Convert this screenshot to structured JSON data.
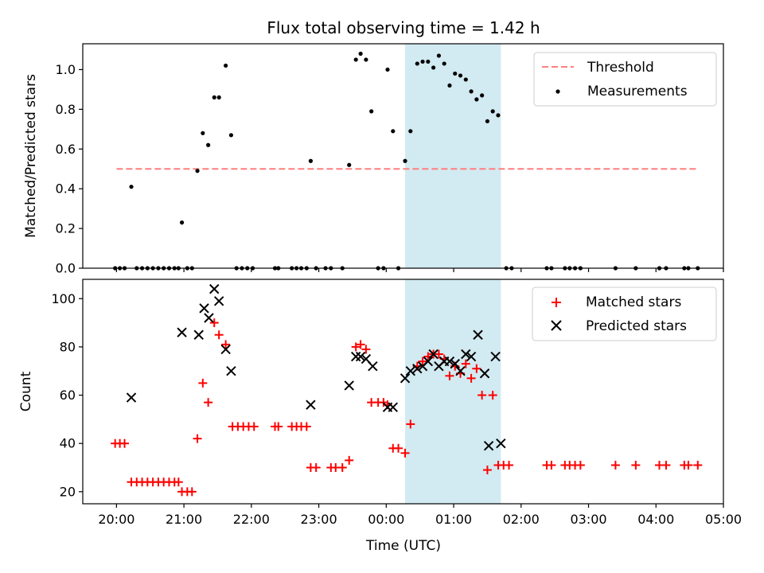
{
  "chart_data": {
    "title": "Flux total observing time = 1.42 h",
    "xlabel": "Time (UTC)",
    "x_unit": "hours UTC (values past 24 mean next day)",
    "xlim": [
      19.5,
      29.0
    ],
    "x_ticks": [
      {
        "value": 20,
        "label": "20:00"
      },
      {
        "value": 21,
        "label": "21:00"
      },
      {
        "value": 22,
        "label": "22:00"
      },
      {
        "value": 23,
        "label": "23:00"
      },
      {
        "value": 24,
        "label": "00:00"
      },
      {
        "value": 25,
        "label": "01:00"
      },
      {
        "value": 26,
        "label": "02:00"
      },
      {
        "value": 27,
        "label": "03:00"
      },
      {
        "value": 28,
        "label": "04:00"
      },
      {
        "value": 29,
        "label": "05:00"
      }
    ],
    "highlight_span": {
      "x0": 24.28,
      "x1": 25.7,
      "color": "#add8e6"
    },
    "panels": [
      {
        "type": "scatter",
        "ylabel": "Matched/Predicted stars",
        "ylim": [
          0,
          1.13
        ],
        "y_ticks": [
          "0.0",
          "0.2",
          "0.4",
          "0.6",
          "0.8",
          "1.0"
        ],
        "y_tick_values": [
          0,
          0.2,
          0.4,
          0.6,
          0.8,
          1.0
        ],
        "legend_position": "upper right",
        "threshold": {
          "name": "Threshold",
          "y": 0.5,
          "x0": 20.0,
          "x1": 28.63,
          "color": "#ff7f7f"
        },
        "series": [
          {
            "name": "Measurements",
            "color": "#000000",
            "marker": "dot",
            "points": [
              [
                19.98,
                0
              ],
              [
                20.05,
                0
              ],
              [
                20.12,
                0
              ],
              [
                20.22,
                0.41
              ],
              [
                20.3,
                0
              ],
              [
                20.38,
                0
              ],
              [
                20.46,
                0
              ],
              [
                20.54,
                0
              ],
              [
                20.62,
                0
              ],
              [
                20.7,
                0
              ],
              [
                20.78,
                0
              ],
              [
                20.86,
                0
              ],
              [
                20.92,
                0
              ],
              [
                20.97,
                0.23
              ],
              [
                21.05,
                0
              ],
              [
                21.12,
                0
              ],
              [
                21.2,
                0.49
              ],
              [
                21.28,
                0.68
              ],
              [
                21.36,
                0.62
              ],
              [
                21.45,
                0.86
              ],
              [
                21.52,
                0.86
              ],
              [
                21.62,
                1.02
              ],
              [
                21.7,
                0.67
              ],
              [
                21.78,
                0
              ],
              [
                21.86,
                0
              ],
              [
                21.94,
                0
              ],
              [
                22.02,
                0
              ],
              [
                22.35,
                0
              ],
              [
                22.4,
                0
              ],
              [
                22.6,
                0
              ],
              [
                22.67,
                0
              ],
              [
                22.74,
                0
              ],
              [
                22.82,
                0
              ],
              [
                22.88,
                0.54
              ],
              [
                22.96,
                0
              ],
              [
                23.1,
                0
              ],
              [
                23.18,
                0
              ],
              [
                23.35,
                0
              ],
              [
                23.45,
                0.52
              ],
              [
                23.55,
                1.05
              ],
              [
                23.62,
                1.08
              ],
              [
                23.7,
                1.05
              ],
              [
                23.78,
                0.79
              ],
              [
                23.88,
                0
              ],
              [
                23.96,
                0
              ],
              [
                24.02,
                1.0
              ],
              [
                24.1,
                0.69
              ],
              [
                24.18,
                0
              ],
              [
                24.28,
                0.54
              ],
              [
                24.36,
                0.69
              ],
              [
                24.46,
                1.03
              ],
              [
                24.54,
                1.04
              ],
              [
                24.62,
                1.04
              ],
              [
                24.7,
                1.01
              ],
              [
                24.78,
                1.07
              ],
              [
                24.86,
                1.03
              ],
              [
                24.94,
                0.92
              ],
              [
                25.02,
                0.98
              ],
              [
                25.1,
                0.97
              ],
              [
                25.18,
                0.95
              ],
              [
                25.26,
                0.89
              ],
              [
                25.34,
                0.85
              ],
              [
                25.42,
                0.87
              ],
              [
                25.5,
                0.74
              ],
              [
                25.58,
                0.79
              ],
              [
                25.66,
                0.77
              ],
              [
                25.78,
                0
              ],
              [
                25.86,
                0
              ],
              [
                26.38,
                0
              ],
              [
                26.45,
                0
              ],
              [
                26.65,
                0
              ],
              [
                26.72,
                0
              ],
              [
                26.8,
                0
              ],
              [
                26.88,
                0
              ],
              [
                27.4,
                0
              ],
              [
                27.7,
                0
              ],
              [
                28.05,
                0
              ],
              [
                28.15,
                0
              ],
              [
                28.42,
                0
              ],
              [
                28.48,
                0
              ],
              [
                28.62,
                0
              ]
            ]
          }
        ]
      },
      {
        "type": "scatter",
        "ylabel": "Count",
        "ylim": [
          15,
          108
        ],
        "y_ticks": [
          "20",
          "40",
          "60",
          "80",
          "100"
        ],
        "y_tick_values": [
          20,
          40,
          60,
          80,
          100
        ],
        "legend_position": "upper right",
        "series": [
          {
            "name": "Matched stars",
            "color": "#ff0000",
            "marker": "plus",
            "points": [
              [
                19.98,
                40
              ],
              [
                20.05,
                40
              ],
              [
                20.12,
                40
              ],
              [
                20.22,
                24
              ],
              [
                20.3,
                24
              ],
              [
                20.38,
                24
              ],
              [
                20.46,
                24
              ],
              [
                20.54,
                24
              ],
              [
                20.62,
                24
              ],
              [
                20.7,
                24
              ],
              [
                20.78,
                24
              ],
              [
                20.86,
                24
              ],
              [
                20.92,
                24
              ],
              [
                20.97,
                20
              ],
              [
                21.05,
                20
              ],
              [
                21.12,
                20
              ],
              [
                21.2,
                42
              ],
              [
                21.28,
                65
              ],
              [
                21.36,
                57
              ],
              [
                21.45,
                90
              ],
              [
                21.52,
                85
              ],
              [
                21.62,
                81
              ],
              [
                21.72,
                47
              ],
              [
                21.8,
                47
              ],
              [
                21.88,
                47
              ],
              [
                21.96,
                47
              ],
              [
                22.04,
                47
              ],
              [
                22.35,
                47
              ],
              [
                22.4,
                47
              ],
              [
                22.6,
                47
              ],
              [
                22.67,
                47
              ],
              [
                22.74,
                47
              ],
              [
                22.82,
                47
              ],
              [
                22.88,
                30
              ],
              [
                22.96,
                30
              ],
              [
                23.18,
                30
              ],
              [
                23.25,
                30
              ],
              [
                23.35,
                30
              ],
              [
                23.45,
                33
              ],
              [
                23.55,
                80
              ],
              [
                23.62,
                81
              ],
              [
                23.7,
                79
              ],
              [
                23.78,
                57
              ],
              [
                23.88,
                57
              ],
              [
                23.96,
                57
              ],
              [
                24.02,
                56
              ],
              [
                24.1,
                38
              ],
              [
                24.18,
                38
              ],
              [
                24.28,
                36
              ],
              [
                24.36,
                48
              ],
              [
                24.46,
                72
              ],
              [
                24.54,
                74
              ],
              [
                24.62,
                76
              ],
              [
                24.7,
                77
              ],
              [
                24.78,
                77
              ],
              [
                24.86,
                75
              ],
              [
                24.94,
                68
              ],
              [
                25.02,
                72
              ],
              [
                25.1,
                69
              ],
              [
                25.18,
                73
              ],
              [
                25.26,
                67
              ],
              [
                25.34,
                71
              ],
              [
                25.42,
                60
              ],
              [
                25.5,
                29
              ],
              [
                25.58,
                60
              ],
              [
                25.66,
                31
              ],
              [
                25.74,
                31
              ],
              [
                25.82,
                31
              ],
              [
                26.38,
                31
              ],
              [
                26.45,
                31
              ],
              [
                26.65,
                31
              ],
              [
                26.72,
                31
              ],
              [
                26.8,
                31
              ],
              [
                26.88,
                31
              ],
              [
                27.4,
                31
              ],
              [
                27.7,
                31
              ],
              [
                28.05,
                31
              ],
              [
                28.15,
                31
              ],
              [
                28.42,
                31
              ],
              [
                28.48,
                31
              ],
              [
                28.62,
                31
              ]
            ]
          },
          {
            "name": "Predicted stars",
            "color": "#000000",
            "marker": "x",
            "points": [
              [
                20.22,
                59
              ],
              [
                20.97,
                86
              ],
              [
                21.22,
                85
              ],
              [
                21.3,
                96
              ],
              [
                21.37,
                92
              ],
              [
                21.45,
                104
              ],
              [
                21.52,
                99
              ],
              [
                21.62,
                79
              ],
              [
                21.7,
                70
              ],
              [
                22.88,
                56
              ],
              [
                23.45,
                64
              ],
              [
                23.55,
                76
              ],
              [
                23.62,
                76
              ],
              [
                23.7,
                75
              ],
              [
                23.8,
                72
              ],
              [
                24.02,
                55
              ],
              [
                24.1,
                55
              ],
              [
                24.28,
                67
              ],
              [
                24.36,
                70
              ],
              [
                24.46,
                71
              ],
              [
                24.54,
                72
              ],
              [
                24.62,
                74
              ],
              [
                24.7,
                77
              ],
              [
                24.78,
                72
              ],
              [
                24.86,
                74
              ],
              [
                24.94,
                74
              ],
              [
                25.02,
                73
              ],
              [
                25.1,
                70
              ],
              [
                25.18,
                77
              ],
              [
                25.26,
                76
              ],
              [
                25.36,
                85
              ],
              [
                25.46,
                69
              ],
              [
                25.52,
                39
              ],
              [
                25.62,
                76
              ],
              [
                25.7,
                40
              ]
            ]
          }
        ]
      }
    ]
  }
}
